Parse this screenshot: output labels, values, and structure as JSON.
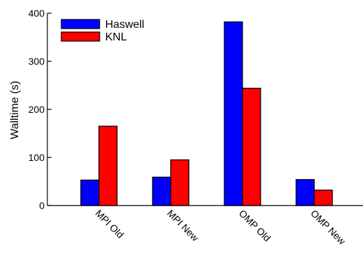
{
  "chart_data": {
    "type": "bar",
    "categories": [
      "MPI Old",
      "MPI New",
      "OMP Old",
      "OMP New"
    ],
    "series": [
      {
        "name": "Haswell",
        "values": [
          53,
          59,
          382,
          54
        ],
        "color": "#0000ff"
      },
      {
        "name": "KNL",
        "values": [
          165,
          95,
          244,
          32
        ],
        "color": "#ff0000"
      }
    ],
    "ylabel": "Walltime (s)",
    "xlabel": "",
    "ylim": [
      0,
      400
    ],
    "yticks": [
      0,
      100,
      200,
      300,
      400
    ],
    "grid": false,
    "legend_position": "top-left"
  }
}
